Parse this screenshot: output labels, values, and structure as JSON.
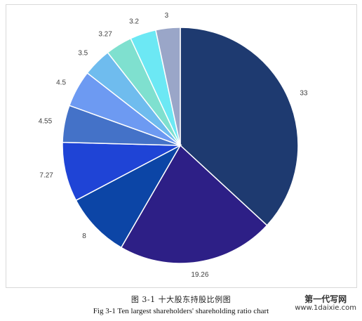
{
  "chart_data": {
    "type": "pie",
    "values": [
      33,
      19.26,
      8,
      7.27,
      4.55,
      4.5,
      3.5,
      3.27,
      3.2,
      3
    ],
    "data_labels": [
      "33",
      "19.26",
      "8",
      "7.27",
      "4.55",
      "4.5",
      "3.5",
      "3.27",
      "3.2",
      "3"
    ],
    "colors": [
      "#1e3a70",
      "#2d1f86",
      "#0c45a6",
      "#1f44d6",
      "#4472c8",
      "#6d9af2",
      "#6fbcee",
      "#7fe0cf",
      "#6ce8f4",
      "#9aa6c8"
    ],
    "start_angle_deg": 0,
    "direction": "clockwise",
    "legend": "none"
  },
  "caption": {
    "cn": "图 3-1  十大股东持股比例图",
    "en": "Fig 3-1 Ten largest shareholders' shareholding ratio chart"
  },
  "watermark": {
    "cn": "第一代写网",
    "url": "www.1daixie.com"
  }
}
